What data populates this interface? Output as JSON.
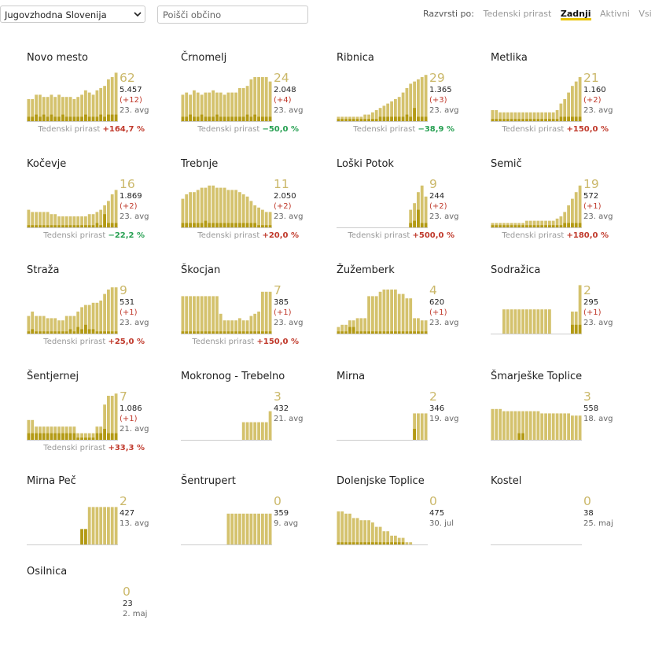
{
  "toolbar": {
    "region_value": "Jugovzhodna Slovenija",
    "search_placeholder": "Poišči občino",
    "sort_label": "Razvrsti po:",
    "sort_options": [
      "Tedenski prirast",
      "Zadnji",
      "Aktivni",
      "Vsi"
    ],
    "sort_active": "Zadnji"
  },
  "growth_label": "Tedenski prirast",
  "colors": {
    "bar_light": "#d4c26d",
    "bar_dark": "#b39a14",
    "growth_positive": "#c0392b",
    "growth_negative": "#27a052",
    "active_underline": "#e8c200"
  },
  "municipalities": [
    {
      "name": "Novo mesto",
      "active": "62",
      "total": "5.457",
      "delta": "(+12)",
      "date": "23. avg",
      "growth": "+164,7 %",
      "chart_data": {
        "type": "bar",
        "light": [
          10,
          10,
          12,
          12,
          11,
          11,
          12,
          11,
          12,
          11,
          11,
          11,
          10,
          11,
          12,
          14,
          13,
          12,
          14,
          15,
          16,
          19,
          20,
          22
        ],
        "dark": [
          2,
          2,
          3,
          2,
          3,
          2,
          3,
          2,
          2,
          3,
          2,
          2,
          2,
          2,
          2,
          3,
          2,
          2,
          2,
          3,
          2,
          3,
          3,
          3
        ]
      }
    },
    {
      "name": "Črnomelj",
      "active": "24",
      "total": "2.048",
      "delta": "(+4)",
      "date": "23. avg",
      "growth": "−50,0 %",
      "chart_data": {
        "type": "bar",
        "light": [
          12,
          13,
          12,
          14,
          13,
          12,
          13,
          13,
          14,
          13,
          13,
          12,
          13,
          13,
          13,
          15,
          15,
          16,
          19,
          20,
          20,
          20,
          20,
          18
        ],
        "dark": [
          2,
          2,
          3,
          2,
          2,
          3,
          2,
          2,
          2,
          3,
          2,
          2,
          2,
          2,
          2,
          2,
          2,
          3,
          2,
          3,
          2,
          2,
          2,
          2
        ]
      }
    },
    {
      "name": "Ribnica",
      "active": "29",
      "total": "1.365",
      "delta": "(+3)",
      "date": "23. avg",
      "growth": "−38,9 %",
      "chart_data": {
        "type": "bar",
        "light": [
          2,
          2,
          2,
          2,
          2,
          2,
          2,
          3,
          3,
          4,
          5,
          6,
          7,
          8,
          9,
          10,
          11,
          13,
          15,
          17,
          18,
          19,
          20,
          21
        ],
        "dark": [
          1,
          1,
          1,
          1,
          1,
          1,
          1,
          1,
          1,
          1,
          1,
          2,
          2,
          2,
          2,
          2,
          2,
          2,
          3,
          2,
          6,
          2,
          2,
          2
        ]
      }
    },
    {
      "name": "Metlika",
      "active": "21",
      "total": "1.160",
      "delta": "(+2)",
      "date": "23. avg",
      "growth": "+150,0 %",
      "chart_data": {
        "type": "bar",
        "light": [
          5,
          5,
          4,
          4,
          4,
          4,
          4,
          4,
          4,
          4,
          4,
          4,
          4,
          4,
          4,
          4,
          4,
          5,
          8,
          10,
          13,
          16,
          18,
          20
        ],
        "dark": [
          1,
          1,
          1,
          1,
          1,
          1,
          1,
          1,
          1,
          1,
          1,
          1,
          1,
          1,
          1,
          1,
          1,
          1,
          2,
          2,
          2,
          2,
          2,
          2
        ]
      }
    },
    {
      "name": "Kočevje",
      "active": "16",
      "total": "1.869",
      "delta": "(+2)",
      "date": "23. avg",
      "growth": "−22,2 %",
      "chart_data": {
        "type": "bar",
        "light": [
          8,
          7,
          7,
          7,
          7,
          7,
          6,
          6,
          5,
          5,
          5,
          5,
          5,
          5,
          5,
          5,
          6,
          6,
          7,
          8,
          10,
          12,
          15,
          17
        ],
        "dark": [
          1,
          1,
          1,
          1,
          1,
          1,
          1,
          1,
          1,
          1,
          1,
          1,
          1,
          1,
          1,
          1,
          1,
          1,
          2,
          1,
          6,
          2,
          2,
          2
        ]
      }
    },
    {
      "name": "Trebnje",
      "active": "11",
      "total": "2.050",
      "delta": "(+2)",
      "date": "23. avg",
      "growth": "+20,0 %",
      "chart_data": {
        "type": "bar",
        "light": [
          13,
          15,
          16,
          16,
          17,
          18,
          18,
          19,
          19,
          18,
          18,
          18,
          17,
          17,
          17,
          16,
          15,
          14,
          12,
          10,
          9,
          8,
          7,
          7
        ],
        "dark": [
          2,
          2,
          2,
          2,
          2,
          2,
          3,
          2,
          2,
          2,
          2,
          2,
          2,
          2,
          2,
          2,
          2,
          2,
          2,
          2,
          1,
          1,
          1,
          1
        ]
      }
    },
    {
      "name": "Loški Potok",
      "active": "9",
      "total": "244",
      "delta": "(+2)",
      "date": "23. avg",
      "growth": "+500,0 %",
      "chart_data": {
        "type": "bar",
        "light": [
          0,
          0,
          0,
          0,
          0,
          0,
          0,
          0,
          0,
          0,
          0,
          0,
          0,
          0,
          0,
          0,
          0,
          0,
          0,
          8,
          11,
          16,
          19,
          14
        ],
        "dark": [
          0,
          0,
          0,
          0,
          0,
          0,
          0,
          0,
          0,
          0,
          0,
          0,
          0,
          0,
          0,
          0,
          0,
          0,
          0,
          2,
          3,
          8,
          2,
          2
        ]
      }
    },
    {
      "name": "Semič",
      "active": "19",
      "total": "572",
      "delta": "(+1)",
      "date": "23. avg",
      "growth": "+180,0 %",
      "chart_data": {
        "type": "bar",
        "light": [
          2,
          2,
          2,
          2,
          2,
          2,
          2,
          2,
          2,
          3,
          3,
          3,
          3,
          3,
          3,
          3,
          3,
          4,
          5,
          7,
          10,
          13,
          16,
          19
        ],
        "dark": [
          1,
          1,
          1,
          1,
          1,
          1,
          1,
          1,
          1,
          1,
          1,
          1,
          1,
          1,
          1,
          1,
          1,
          1,
          1,
          2,
          2,
          2,
          2,
          2
        ]
      }
    },
    {
      "name": "Straža",
      "active": "9",
      "total": "531",
      "delta": "(+1)",
      "date": "23. avg",
      "growth": "+25,0 %",
      "chart_data": {
        "type": "bar",
        "light": [
          8,
          10,
          8,
          8,
          8,
          7,
          7,
          7,
          6,
          6,
          8,
          8,
          8,
          10,
          12,
          13,
          13,
          14,
          14,
          15,
          18,
          20,
          21,
          21
        ],
        "dark": [
          1,
          2,
          1,
          1,
          1,
          1,
          1,
          1,
          1,
          1,
          1,
          2,
          1,
          3,
          2,
          4,
          2,
          2,
          1,
          1,
          1,
          1,
          1,
          1
        ]
      }
    },
    {
      "name": "Škocjan",
      "active": "7",
      "total": "385",
      "delta": "(+1)",
      "date": "23. avg",
      "growth": "+150,0 %",
      "chart_data": {
        "type": "bar",
        "light": [
          17,
          17,
          17,
          17,
          17,
          17,
          17,
          17,
          17,
          17,
          9,
          6,
          6,
          6,
          6,
          7,
          6,
          6,
          8,
          9,
          10,
          19,
          19,
          19
        ],
        "dark": [
          1,
          1,
          1,
          1,
          1,
          1,
          1,
          1,
          1,
          1,
          1,
          1,
          1,
          1,
          1,
          1,
          1,
          1,
          1,
          1,
          1,
          1,
          1,
          1
        ]
      }
    },
    {
      "name": "Žužemberk",
      "active": "4",
      "total": "620",
      "delta": "(+1)",
      "date": "23. avg",
      "growth": "",
      "chart_data": {
        "type": "bar",
        "light": [
          3,
          4,
          4,
          6,
          6,
          7,
          7,
          7,
          17,
          17,
          17,
          19,
          20,
          20,
          20,
          20,
          18,
          18,
          16,
          16,
          7,
          7,
          6,
          6
        ],
        "dark": [
          1,
          1,
          1,
          3,
          3,
          1,
          1,
          1,
          1,
          1,
          1,
          1,
          1,
          1,
          1,
          1,
          1,
          1,
          1,
          1,
          1,
          1,
          1,
          1
        ]
      }
    },
    {
      "name": "Sodražica",
      "active": "2",
      "total": "295",
      "delta": "(+1)",
      "date": "23. avg",
      "growth": "",
      "chart_data": {
        "type": "bar",
        "light": [
          0,
          0,
          0,
          11,
          11,
          11,
          11,
          11,
          11,
          11,
          11,
          11,
          11,
          11,
          11,
          11,
          0,
          0,
          0,
          0,
          0,
          10,
          10,
          22
        ],
        "dark": [
          0,
          0,
          0,
          0,
          0,
          0,
          0,
          0,
          0,
          0,
          0,
          0,
          0,
          0,
          0,
          0,
          0,
          0,
          0,
          0,
          0,
          4,
          4,
          4
        ]
      }
    },
    {
      "name": "Šentjernej",
      "active": "7",
      "total": "1.086",
      "delta": "(+1)",
      "date": "21. avg",
      "growth": "+33,3 %",
      "chart_data": {
        "type": "bar",
        "light": [
          9,
          9,
          6,
          6,
          6,
          6,
          6,
          6,
          6,
          6,
          6,
          6,
          6,
          3,
          3,
          3,
          3,
          3,
          6,
          6,
          16,
          20,
          20,
          21
        ],
        "dark": [
          3,
          3,
          3,
          3,
          3,
          3,
          3,
          3,
          3,
          3,
          3,
          3,
          3,
          1,
          1,
          1,
          1,
          1,
          3,
          3,
          5,
          3,
          3,
          3
        ]
      }
    },
    {
      "name": "Mokronog - Trebelno",
      "active": "3",
      "total": "432",
      "delta": "",
      "date": "21. avg",
      "growth": "",
      "chart_data": {
        "type": "bar",
        "light": [
          0,
          0,
          0,
          0,
          0,
          0,
          0,
          0,
          0,
          0,
          0,
          0,
          0,
          0,
          0,
          0,
          8,
          8,
          8,
          8,
          8,
          8,
          8,
          13
        ],
        "dark": [
          0,
          0,
          0,
          0,
          0,
          0,
          0,
          0,
          0,
          0,
          0,
          0,
          0,
          0,
          0,
          0,
          0,
          0,
          0,
          0,
          0,
          0,
          0,
          0
        ]
      }
    },
    {
      "name": "Mirna",
      "active": "2",
      "total": "346",
      "delta": "",
      "date": "19. avg",
      "growth": "",
      "chart_data": {
        "type": "bar",
        "light": [
          0,
          0,
          0,
          0,
          0,
          0,
          0,
          0,
          0,
          0,
          0,
          0,
          0,
          0,
          0,
          0,
          0,
          0,
          0,
          0,
          12,
          12,
          12,
          12
        ],
        "dark": [
          0,
          0,
          0,
          0,
          0,
          0,
          0,
          0,
          0,
          0,
          0,
          0,
          0,
          0,
          0,
          0,
          0,
          0,
          0,
          0,
          5,
          0,
          0,
          0
        ]
      }
    },
    {
      "name": "Šmarješke Toplice",
      "active": "3",
      "total": "558",
      "delta": "",
      "date": "18. avg",
      "growth": "",
      "chart_data": {
        "type": "bar",
        "light": [
          14,
          14,
          14,
          13,
          13,
          13,
          13,
          13,
          13,
          13,
          13,
          13,
          13,
          12,
          12,
          12,
          12,
          12,
          12,
          12,
          12,
          11,
          11,
          11
        ],
        "dark": [
          0,
          0,
          0,
          0,
          0,
          0,
          0,
          3,
          3,
          0,
          0,
          0,
          0,
          0,
          0,
          0,
          0,
          0,
          0,
          0,
          0,
          0,
          0,
          0
        ]
      }
    },
    {
      "name": "Mirna Peč",
      "active": "2",
      "total": "427",
      "delta": "",
      "date": "13. avg",
      "growth": "",
      "chart_data": {
        "type": "bar",
        "light": [
          0,
          0,
          0,
          0,
          0,
          0,
          0,
          0,
          0,
          0,
          0,
          0,
          0,
          0,
          7,
          7,
          17,
          17,
          17,
          17,
          17,
          17,
          17,
          17
        ],
        "dark": [
          0,
          0,
          0,
          0,
          0,
          0,
          0,
          0,
          0,
          0,
          0,
          0,
          0,
          0,
          7,
          7,
          0,
          0,
          0,
          0,
          0,
          0,
          0,
          0
        ]
      }
    },
    {
      "name": "Šentrupert",
      "active": "0",
      "total": "359",
      "delta": "",
      "date": "9. avg",
      "growth": "",
      "chart_data": {
        "type": "bar",
        "light": [
          0,
          0,
          0,
          0,
          0,
          0,
          0,
          0,
          0,
          0,
          0,
          0,
          14,
          14,
          14,
          14,
          14,
          14,
          14,
          14,
          14,
          14,
          14,
          14
        ],
        "dark": [
          0,
          0,
          0,
          0,
          0,
          0,
          0,
          0,
          0,
          0,
          0,
          0,
          0,
          0,
          0,
          0,
          0,
          0,
          0,
          0,
          0,
          0,
          0,
          0
        ]
      }
    },
    {
      "name": "Dolenjske Toplice",
      "active": "0",
      "total": "475",
      "delta": "",
      "date": "30. jul",
      "growth": "",
      "chart_data": {
        "type": "bar",
        "light": [
          15,
          15,
          14,
          14,
          12,
          12,
          11,
          11,
          11,
          10,
          8,
          8,
          6,
          6,
          4,
          4,
          3,
          3,
          1,
          1,
          0,
          0,
          0,
          0
        ],
        "dark": [
          1,
          1,
          1,
          1,
          1,
          1,
          1,
          1,
          1,
          1,
          1,
          1,
          1,
          1,
          1,
          1,
          1,
          1,
          0,
          0,
          0,
          0,
          0,
          0
        ]
      }
    },
    {
      "name": "Kostel",
      "active": "0",
      "total": "38",
      "delta": "",
      "date": "25. maj",
      "growth": "",
      "chart_data": {
        "type": "bar",
        "light": [
          0,
          0,
          0,
          0,
          0,
          0,
          0,
          0,
          0,
          0,
          0,
          0,
          0,
          0,
          0,
          0,
          0,
          0,
          0,
          0,
          0,
          0,
          0,
          0
        ],
        "dark": [
          0,
          0,
          0,
          0,
          0,
          0,
          0,
          0,
          0,
          0,
          0,
          0,
          0,
          0,
          0,
          0,
          0,
          0,
          0,
          0,
          0,
          0,
          0,
          0
        ]
      }
    },
    {
      "name": "Osilnica",
      "active": "0",
      "total": "23",
      "delta": "",
      "date": "2. maj",
      "growth": "",
      "chart_data": {
        "type": "bar",
        "light": [],
        "dark": []
      }
    }
  ]
}
